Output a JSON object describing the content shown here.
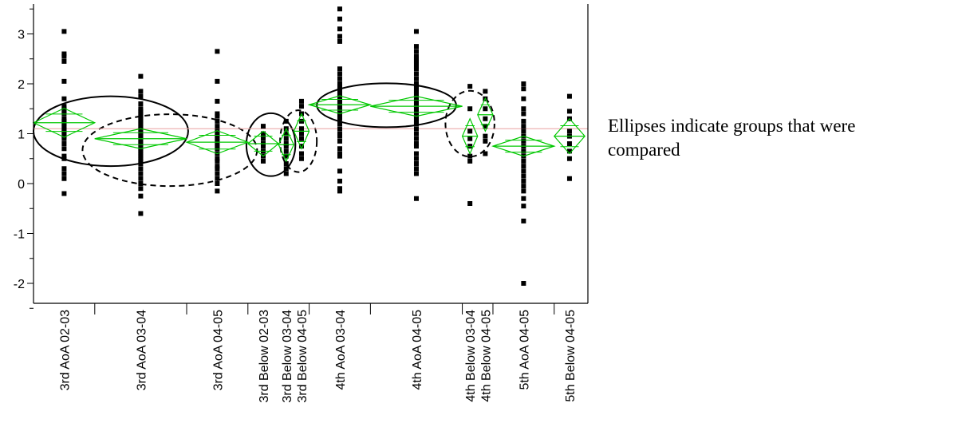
{
  "chart_data": {
    "type": "scatter",
    "title": "",
    "xlabel": "",
    "ylabel": "",
    "ylim": [
      -2.5,
      3.5
    ],
    "yticks": [
      -2,
      -1,
      0,
      1,
      2,
      3
    ],
    "grand_mean": 1.1,
    "grid": false,
    "colors": {
      "points": "#000000",
      "diamonds": "#00c800",
      "reference": "#e8a0a0",
      "axis": "#000000"
    },
    "groups": [
      {
        "label": "3rd AoA 02-03",
        "x": 1.0,
        "width": 2.0,
        "mean": 1.22,
        "ci": [
          0.93,
          1.51
        ],
        "points": [
          3.05,
          2.6,
          2.55,
          2.45,
          2.05,
          1.7,
          1.55,
          1.5,
          1.45,
          1.4,
          1.3,
          1.25,
          1.2,
          1.15,
          1.1,
          1.05,
          1.0,
          0.95,
          0.9,
          0.8,
          0.7,
          0.55,
          0.5,
          0.3,
          0.2,
          0.1,
          -0.2
        ]
      },
      {
        "label": "3rd AoA 03-04",
        "x": 3.5,
        "width": 3.0,
        "mean": 0.9,
        "ci": [
          0.7,
          1.1
        ],
        "points": [
          2.15,
          1.85,
          1.75,
          1.6,
          1.5,
          1.45,
          1.4,
          1.35,
          1.3,
          1.25,
          1.2,
          1.15,
          1.1,
          1.05,
          1.0,
          0.95,
          0.9,
          0.85,
          0.8,
          0.75,
          0.7,
          0.65,
          0.6,
          0.55,
          0.5,
          0.45,
          0.4,
          0.3,
          0.2,
          0.1,
          0.0,
          -0.1,
          -0.25,
          -0.6
        ]
      },
      {
        "label": "3rd AoA 04-05",
        "x": 6.0,
        "width": 2.0,
        "mean": 0.83,
        "ci": [
          0.6,
          1.06
        ],
        "points": [
          2.65,
          2.05,
          1.65,
          1.4,
          1.35,
          1.25,
          1.15,
          1.05,
          1.0,
          0.95,
          0.9,
          0.85,
          0.8,
          0.75,
          0.7,
          0.6,
          0.5,
          0.45,
          0.35,
          0.3,
          0.2,
          0.1,
          0.0,
          -0.15
        ]
      },
      {
        "label": "3rd Below 02-03",
        "x": 7.5,
        "width": 1.0,
        "mean": 0.8,
        "ci": [
          0.55,
          1.05
        ],
        "points": [
          1.15,
          1.0,
          0.9,
          0.8,
          0.75,
          0.65,
          0.55,
          0.45
        ]
      },
      {
        "label": "3rd Below 03-04",
        "x": 8.25,
        "width": 0.5,
        "mean": 0.78,
        "ci": [
          0.45,
          1.1
        ],
        "points": [
          1.25,
          1.1,
          1.0,
          0.9,
          0.8,
          0.75,
          0.65,
          0.55,
          0.4,
          0.3,
          0.2
        ]
      },
      {
        "label": "3rd Below 04-05",
        "x": 8.75,
        "width": 0.5,
        "mean": 1.05,
        "ci": [
          0.7,
          1.4
        ],
        "points": [
          1.65,
          1.55,
          1.4,
          1.25,
          1.1,
          1.0,
          0.9,
          0.75,
          0.6,
          0.5
        ]
      },
      {
        "label": "4th AoA 03-04",
        "x": 10.0,
        "width": 2.0,
        "mean": 1.58,
        "ci": [
          1.4,
          1.76
        ],
        "points": [
          3.5,
          3.3,
          3.1,
          2.95,
          2.85,
          2.3,
          2.2,
          2.1,
          2.0,
          1.95,
          1.9,
          1.85,
          1.8,
          1.75,
          1.7,
          1.65,
          1.6,
          1.55,
          1.5,
          1.45,
          1.4,
          1.35,
          1.3,
          1.2,
          1.1,
          1.0,
          0.95,
          0.85,
          0.7,
          0.6,
          0.55,
          0.25,
          0.05,
          -0.1,
          -0.15
        ]
      },
      {
        "label": "4th AoA 04-05",
        "x": 12.5,
        "width": 3.0,
        "mean": 1.55,
        "ci": [
          1.35,
          1.75
        ],
        "points": [
          3.05,
          2.75,
          2.65,
          2.55,
          2.5,
          2.45,
          2.4,
          2.35,
          2.3,
          2.2,
          2.1,
          2.0,
          1.95,
          1.9,
          1.85,
          1.8,
          1.75,
          1.7,
          1.65,
          1.6,
          1.55,
          1.5,
          1.45,
          1.4,
          1.35,
          1.3,
          1.25,
          1.2,
          1.1,
          1.0,
          0.9,
          0.8,
          0.75,
          0.6,
          0.5,
          0.4,
          0.3,
          0.2,
          -0.3
        ]
      },
      {
        "label": "4th Below 03-04",
        "x": 14.25,
        "width": 0.5,
        "mean": 0.95,
        "ci": [
          0.6,
          1.3
        ],
        "points": [
          1.95,
          1.5,
          1.05,
          0.9,
          0.75,
          0.55,
          0.45,
          -0.4
        ]
      },
      {
        "label": "4th Below 04-05",
        "x": 14.75,
        "width": 0.5,
        "mean": 1.38,
        "ci": [
          1.05,
          1.71
        ],
        "points": [
          1.85,
          1.7,
          1.5,
          1.3,
          1.15,
          0.95,
          0.85,
          0.6
        ]
      },
      {
        "label": "5th AoA 04-05",
        "x": 16.0,
        "width": 2.0,
        "mean": 0.75,
        "ci": [
          0.55,
          0.95
        ],
        "points": [
          2.0,
          1.9,
          1.7,
          1.5,
          1.4,
          1.25,
          1.15,
          1.05,
          0.95,
          0.85,
          0.75,
          0.65,
          0.55,
          0.45,
          0.35,
          0.25,
          0.15,
          0.05,
          -0.05,
          -0.15,
          -0.3,
          -0.45,
          -0.75,
          -2.0
        ]
      },
      {
        "label": "5th Below 04-05",
        "x": 17.5,
        "width": 1.0,
        "mean": 0.95,
        "ci": [
          0.6,
          1.3
        ],
        "points": [
          1.75,
          1.45,
          1.3,
          1.05,
          0.95,
          0.8,
          0.65,
          0.5,
          0.1
        ]
      }
    ],
    "ellipses": [
      {
        "from": 0.0,
        "to": 5.05,
        "y_center": 1.05,
        "y_radius": 0.7,
        "style": "solid"
      },
      {
        "from": 1.6,
        "to": 7.3,
        "y_center": 0.67,
        "y_radius": 0.72,
        "style": "dashed"
      },
      {
        "from": 6.95,
        "to": 8.55,
        "y_center": 0.78,
        "y_radius": 0.63,
        "style": "solid"
      },
      {
        "from": 8.05,
        "to": 9.25,
        "y_center": 0.85,
        "y_radius": 0.62,
        "style": "dashed"
      },
      {
        "from": 9.25,
        "to": 13.8,
        "y_center": 1.57,
        "y_radius": 0.44,
        "style": "solid"
      },
      {
        "from": 13.45,
        "to": 15.05,
        "y_center": 1.2,
        "y_radius": 0.66,
        "style": "dashed"
      }
    ],
    "x_domain": [
      0,
      18.1
    ],
    "category_separators": [
      2.0,
      5.0,
      7.0,
      9.0,
      11.0,
      14.0,
      15.0,
      17.0
    ],
    "annotation": "Ellipses indicate groups that were compared"
  }
}
